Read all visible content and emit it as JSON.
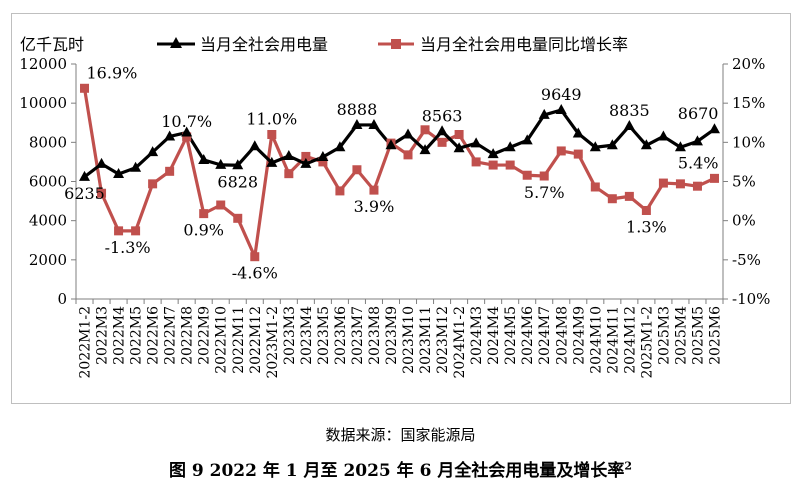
{
  "chart_data": {
    "type": "line",
    "left_unit": "亿千瓦时",
    "categories": [
      "2022M1-2",
      "2022M3",
      "2022M4",
      "2022M5",
      "2022M6",
      "2022M7",
      "2022M8",
      "2022M9",
      "2022M10",
      "2022M11",
      "2022M12",
      "2023M1-2",
      "2023M3",
      "2023M4",
      "2023M5",
      "2023M6",
      "2023M7",
      "2023M8",
      "2023M9",
      "2023M10",
      "2023M11",
      "2023M12",
      "2024M1-2",
      "2024M3",
      "2024M4",
      "2024M5",
      "2024M6",
      "2024M7",
      "2024M8",
      "2024M9",
      "2024M10",
      "2024M11",
      "2024M12",
      "2025M1-2",
      "2025M3",
      "2025M4",
      "2025M5",
      "2025M6"
    ],
    "y_left": {
      "min": 0,
      "max": 12000,
      "ticks": [
        "0",
        "2000",
        "4000",
        "6000",
        "8000",
        "10000",
        "12000"
      ]
    },
    "y_right": {
      "min": -10,
      "max": 20,
      "ticks": [
        "-10%",
        "-5%",
        "0%",
        "5%",
        "10%",
        "15%",
        "20%"
      ]
    },
    "series": [
      {
        "name": "当月全社会用电量",
        "axis": "left",
        "color": "#000000",
        "marker": "triangle",
        "values": [
          6235,
          6900,
          6380,
          6700,
          7500,
          8300,
          8500,
          7100,
          6850,
          6828,
          7800,
          6950,
          7300,
          6900,
          7250,
          7750,
          8888,
          8888,
          7850,
          8400,
          7600,
          8563,
          7700,
          7950,
          7400,
          7750,
          8100,
          9400,
          9649,
          8450,
          7750,
          7850,
          8835,
          7850,
          8300,
          7750,
          8050,
          8670
        ]
      },
      {
        "name": "当月全社会用电量同比增长率",
        "axis": "right",
        "color": "#c0504d",
        "marker": "square",
        "values": [
          16.9,
          3.5,
          -1.3,
          -1.3,
          4.7,
          6.3,
          10.7,
          0.9,
          2.0,
          0.3,
          -4.6,
          11.0,
          6.0,
          8.2,
          7.5,
          3.8,
          6.5,
          3.9,
          9.9,
          8.4,
          11.6,
          10.0,
          11.0,
          7.5,
          7.1,
          7.1,
          5.8,
          5.7,
          8.9,
          8.5,
          4.3,
          2.8,
          3.1,
          1.3,
          4.8,
          4.7,
          4.4,
          5.4
        ]
      }
    ],
    "data_labels": [
      {
        "series": 0,
        "index": 0,
        "text": "6235",
        "pos": "below"
      },
      {
        "series": 0,
        "index": 9,
        "text": "6828",
        "pos": "below"
      },
      {
        "series": 0,
        "index": 16,
        "text": "8888",
        "pos": "above"
      },
      {
        "series": 0,
        "index": 21,
        "text": "8563",
        "pos": "above"
      },
      {
        "series": 0,
        "index": 28,
        "text": "9649",
        "pos": "above"
      },
      {
        "series": 0,
        "index": 32,
        "text": "8835",
        "pos": "above"
      },
      {
        "series": 0,
        "index": 37,
        "text": "8670",
        "pos": "above-left"
      },
      {
        "series": 1,
        "index": 0,
        "text": "16.9%",
        "pos": "above-right"
      },
      {
        "series": 1,
        "index": 2,
        "text": "-1.3%",
        "pos": "below-right"
      },
      {
        "series": 1,
        "index": 6,
        "text": "10.7%",
        "pos": "above"
      },
      {
        "series": 1,
        "index": 7,
        "text": "0.9%",
        "pos": "below"
      },
      {
        "series": 1,
        "index": 10,
        "text": "-4.6%",
        "pos": "below"
      },
      {
        "series": 1,
        "index": 11,
        "text": "11.0%",
        "pos": "above"
      },
      {
        "series": 1,
        "index": 17,
        "text": "3.9%",
        "pos": "below"
      },
      {
        "series": 1,
        "index": 27,
        "text": "5.7%",
        "pos": "below"
      },
      {
        "series": 1,
        "index": 33,
        "text": "1.3%",
        "pos": "below"
      },
      {
        "series": 1,
        "index": 37,
        "text": "5.4%",
        "pos": "above-left"
      }
    ]
  },
  "source_note": "数据来源：国家能源局",
  "caption": "图 9 2022 年 1 月至 2025 年 6 月全社会用电量及增长率",
  "caption_sup": "2"
}
